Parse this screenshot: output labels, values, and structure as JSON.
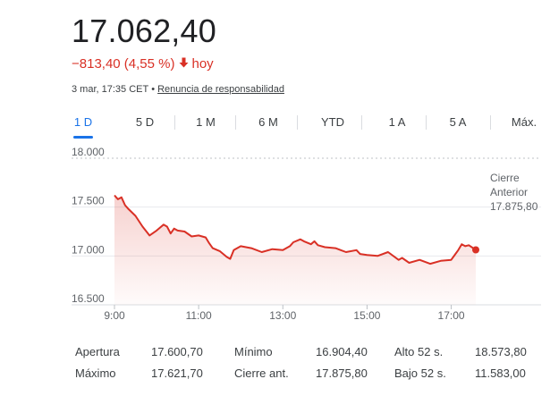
{
  "quote": {
    "price": "17.062,40",
    "change": "−813,40 (4,55 %)",
    "period": "hoy",
    "timestamp": "3 mar, 17:35 CET",
    "disclaimer": "Renuncia de responsabilidad",
    "arrow_icon": "arrow-down",
    "negative_color": "#d93025"
  },
  "tabs": [
    {
      "label": "1 D",
      "active": true
    },
    {
      "label": "5 D",
      "active": false
    },
    {
      "label": "1 M",
      "active": false
    },
    {
      "label": "6 M",
      "active": false
    },
    {
      "label": "YTD",
      "active": false
    },
    {
      "label": "1 A",
      "active": false
    },
    {
      "label": "5 A",
      "active": false
    },
    {
      "label": "Máx.",
      "active": false
    }
  ],
  "chart_data": {
    "type": "area",
    "line_color": "#d93025",
    "ylim": [
      16500,
      18000
    ],
    "y_ticks": [
      {
        "value": 18000,
        "label": "18.000"
      },
      {
        "value": 17500,
        "label": "17.500"
      },
      {
        "value": 17000,
        "label": "17.000"
      },
      {
        "value": 16500,
        "label": "16.500"
      }
    ],
    "xlim": [
      "9:00",
      "17:35"
    ],
    "x_ticks": [
      "9:00",
      "11:00",
      "13:00",
      "15:00",
      "17:00"
    ],
    "reference_line": {
      "label_line1": "Cierre",
      "label_line2": "Anterior",
      "value_label": "17.875,80",
      "value": 17875.8
    },
    "x": [
      "9:00",
      "9:05",
      "9:10",
      "9:15",
      "9:20",
      "9:30",
      "9:40",
      "9:50",
      "10:00",
      "10:10",
      "10:15",
      "10:20",
      "10:25",
      "10:30",
      "10:40",
      "10:50",
      "11:00",
      "11:10",
      "11:15",
      "11:20",
      "11:30",
      "11:40",
      "11:45",
      "11:50",
      "12:00",
      "12:15",
      "12:30",
      "12:45",
      "13:00",
      "13:10",
      "13:15",
      "13:25",
      "13:30",
      "13:40",
      "13:45",
      "13:50",
      "14:00",
      "14:15",
      "14:30",
      "14:45",
      "14:50",
      "15:00",
      "15:15",
      "15:30",
      "15:45",
      "15:50",
      "16:00",
      "16:15",
      "16:30",
      "16:45",
      "17:00",
      "17:10",
      "17:15",
      "17:20",
      "17:25",
      "17:35"
    ],
    "values": [
      17620,
      17580,
      17600,
      17520,
      17480,
      17410,
      17300,
      17210,
      17260,
      17320,
      17300,
      17230,
      17280,
      17260,
      17250,
      17200,
      17210,
      17190,
      17130,
      17080,
      17050,
      16990,
      16970,
      17060,
      17100,
      17080,
      17040,
      17070,
      17060,
      17100,
      17140,
      17170,
      17150,
      17120,
      17150,
      17110,
      17090,
      17080,
      17040,
      17060,
      17020,
      17010,
      17000,
      17040,
      16960,
      16980,
      16930,
      16960,
      16920,
      16950,
      16960,
      17060,
      17120,
      17100,
      17110,
      17062.4
    ]
  },
  "stats": [
    [
      {
        "label": "Apertura",
        "value": "17.600,70"
      },
      {
        "label": "Mínimo",
        "value": "16.904,40"
      },
      {
        "label": "Alto 52 s.",
        "value": "18.573,80"
      }
    ],
    [
      {
        "label": "Máximo",
        "value": "17.621,70"
      },
      {
        "label": "Cierre ant.",
        "value": "17.875,80"
      },
      {
        "label": "Bajo 52 s.",
        "value": "11.583,00"
      }
    ]
  ]
}
